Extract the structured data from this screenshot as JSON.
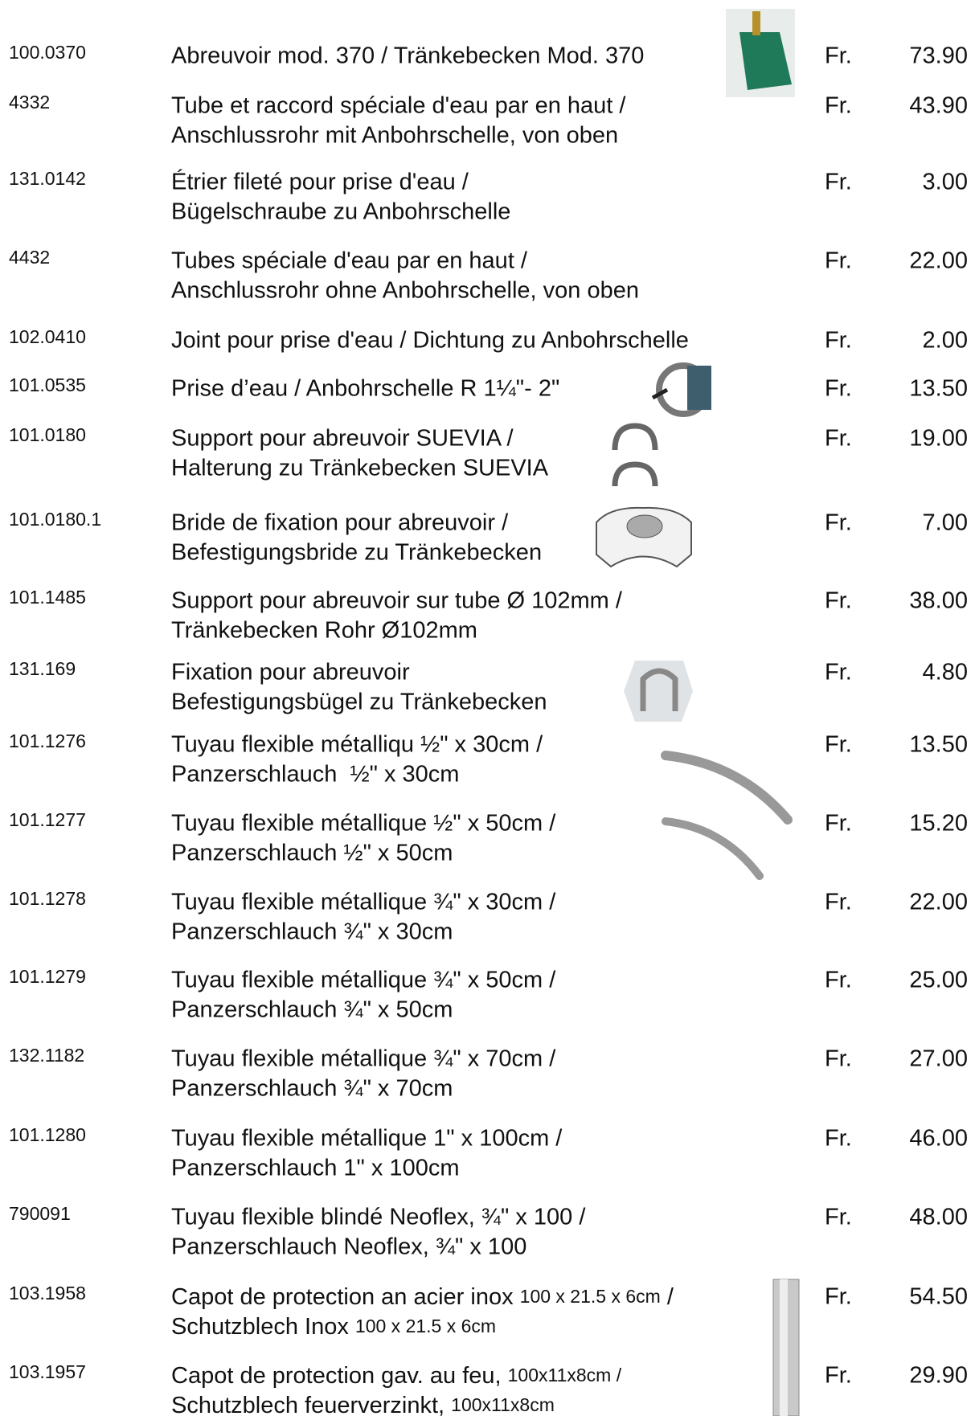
{
  "rows": [
    {
      "code": "100.0370",
      "lines": [
        "Abreuvoir mod. 370 / Tränkebecken Mod. 370"
      ],
      "currency": "Fr.",
      "price": "73.90"
    },
    {
      "code": "4332",
      "lines": [
        "Tube et raccord spéciale d'eau par en haut /",
        "Anschlussrohr mit Anbohrschelle, von oben"
      ],
      "currency": "Fr.",
      "price": "43.90"
    },
    {
      "code": "131.0142",
      "lines": [
        "Étrier fileté pour prise d'eau /",
        "Bügelschraube zu Anbohrschelle"
      ],
      "currency": "Fr.",
      "price": "3.00"
    },
    {
      "code": "4432",
      "lines": [
        "Tubes spéciale d'eau par en haut /",
        "Anschlussrohr ohne Anbohrschelle, von oben"
      ],
      "currency": "Fr.",
      "price": "22.00"
    },
    {
      "code": "102.0410",
      "lines": [
        "Joint pour prise d'eau / Dichtung zu Anbohrschelle"
      ],
      "currency": "Fr.",
      "price": "2.00"
    },
    {
      "code": "101.0535",
      "lines": [
        "Prise d’eau / Anbohrschelle R 1¼\"- 2\""
      ],
      "currency": "Fr.",
      "price": "13.50"
    },
    {
      "code": "101.0180",
      "lines": [
        "Support pour abreuvoir SUEVIA /",
        "Halterung zu Tränkebecken SUEVIA"
      ],
      "currency": "Fr.",
      "price": "19.00"
    },
    {
      "code": "101.0180.1",
      "lines": [
        "Bride de fixation pour abreuvoir /",
        "Befestigungsbride zu Tränkebecken"
      ],
      "currency": "Fr.",
      "price": "7.00"
    },
    {
      "code": "101.1485",
      "lines": [
        "Support pour abreuvoir sur tube Ø 102mm /",
        "Tränkebecken Rohr Ø102mm"
      ],
      "currency": "Fr.",
      "price": "38.00"
    },
    {
      "code": "131.169",
      "lines": [
        "Fixation pour abreuvoir",
        "Befestigungsbügel zu Tränkebecken"
      ],
      "currency": "Fr.",
      "price": "4.80"
    },
    {
      "code": "101.1276",
      "lines": [
        "Tuyau flexible métalliqu ½\" x 30cm /",
        "Panzerschlauch  ½\" x 30cm"
      ],
      "currency": "Fr.",
      "price": "13.50"
    },
    {
      "code": "101.1277",
      "lines": [
        "Tuyau flexible métallique ½\" x 50cm /",
        "Panzerschlauch ½\" x 50cm"
      ],
      "currency": "Fr.",
      "price": "15.20"
    },
    {
      "code": "101.1278",
      "lines": [
        "Tuyau flexible métallique ¾\" x 30cm /",
        "Panzerschlauch ¾\" x 30cm"
      ],
      "currency": "Fr.",
      "price": "22.00"
    },
    {
      "code": "101.1279",
      "lines": [
        "Tuyau flexible métallique ¾\" x 50cm /",
        "Panzerschlauch ¾\" x 50cm"
      ],
      "currency": "Fr.",
      "price": "25.00"
    },
    {
      "code": "132.1182",
      "lines": [
        "Tuyau flexible métallique ¾\" x 70cm /",
        "Panzerschlauch ¾\" x 70cm"
      ],
      "currency": "Fr.",
      "price": "27.00"
    },
    {
      "code": "101.1280",
      "lines": [
        "Tuyau flexible métallique 1\" x 100cm /",
        "Panzerschlauch 1\" x 100cm"
      ],
      "currency": "Fr.",
      "price": "46.00"
    },
    {
      "code": "790091",
      "lines": [
        "Tuyau flexible blindé Neoflex, ¾\" x 100 /",
        "Panzerschlauch Neoflex, ¾\" x 100"
      ],
      "currency": "Fr.",
      "price": "48.00"
    },
    {
      "code": "103.1958",
      "lines": [
        [
          "Capot de protection an acier inox ",
          "100 x 21.5 x 6cm",
          " /"
        ],
        [
          "Schutzblech Inox ",
          "100 x 21.5 x 6cm"
        ]
      ],
      "currency": "Fr.",
      "price": "54.50"
    },
    {
      "code": "103.1957",
      "lines": [
        [
          "Capot de protection gav. au feu, ",
          "100x11x8cm /"
        ],
        [
          "Schutzblech feuerverzinkt, ",
          "100x11x8cm"
        ]
      ],
      "currency": "Fr.",
      "price": "29.90"
    }
  ]
}
